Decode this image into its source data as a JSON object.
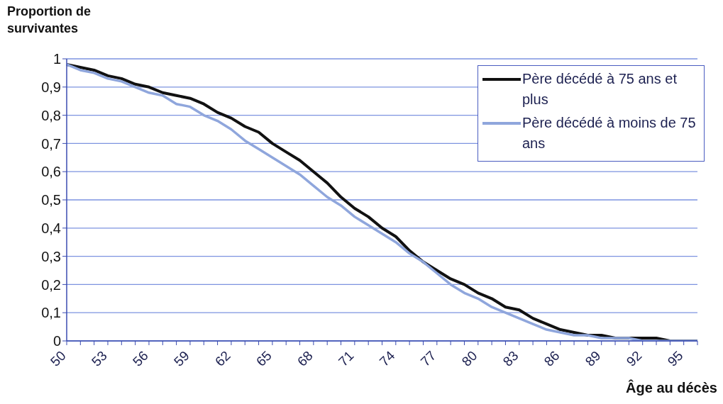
{
  "chart_data": {
    "type": "line",
    "ylabel": "Proportion de survivantes",
    "xlabel": "Âge au décès",
    "categories": [
      "50",
      null,
      null,
      "53",
      null,
      null,
      "56",
      null,
      null,
      "59",
      null,
      null,
      "62",
      null,
      null,
      "65",
      null,
      null,
      "68",
      null,
      null,
      "71",
      null,
      null,
      "74",
      null,
      null,
      "77",
      null,
      null,
      "80",
      null,
      null,
      "83",
      null,
      null,
      "86",
      null,
      null,
      "89",
      null,
      null,
      "92",
      null,
      null,
      "95",
      null
    ],
    "series": [
      {
        "name": "Père décédé à 75 ans et plus",
        "color": "#111111",
        "values": [
          0.98,
          0.97,
          0.96,
          0.94,
          0.93,
          0.91,
          0.9,
          0.88,
          0.87,
          0.86,
          0.84,
          0.81,
          0.79,
          0.76,
          0.74,
          0.7,
          0.67,
          0.64,
          0.6,
          0.56,
          0.51,
          0.47,
          0.44,
          0.4,
          0.37,
          0.32,
          0.28,
          0.25,
          0.22,
          0.2,
          0.17,
          0.15,
          0.12,
          0.11,
          0.08,
          0.06,
          0.04,
          0.03,
          0.02,
          0.02,
          0.01,
          0.01,
          0.01,
          0.01,
          0,
          0,
          0
        ]
      },
      {
        "name": "Père décédé à moins de 75 ans",
        "color": "#8fa6dc",
        "values": [
          0.98,
          0.96,
          0.95,
          0.93,
          0.92,
          0.9,
          0.88,
          0.87,
          0.84,
          0.83,
          0.8,
          0.78,
          0.75,
          0.71,
          0.68,
          0.65,
          0.62,
          0.59,
          0.55,
          0.51,
          0.48,
          0.44,
          0.41,
          0.38,
          0.35,
          0.31,
          0.28,
          0.24,
          0.2,
          0.17,
          0.15,
          0.12,
          0.1,
          0.08,
          0.06,
          0.04,
          0.03,
          0.02,
          0.02,
          0.01,
          0.01,
          0.01,
          0,
          0,
          0,
          0,
          0
        ]
      }
    ],
    "ylim": [
      0,
      1
    ],
    "yticks": [
      0,
      {
        "value": 0.1,
        "label": "0,1"
      },
      {
        "value": 0.2,
        "label": "0,2"
      },
      {
        "value": 0.3,
        "label": "0,3"
      },
      {
        "value": 0.4,
        "label": "0,4"
      },
      {
        "value": 0.5,
        "label": "0,5"
      },
      {
        "value": 0.6,
        "label": "0,6"
      },
      {
        "value": 0.7,
        "label": "0,7"
      },
      {
        "value": 0.8,
        "label": "0,8"
      },
      {
        "value": 0.9,
        "label": "0,9"
      },
      1
    ],
    "grid": "y",
    "legend": "top right",
    "marker": "none",
    "line_style": "solid"
  }
}
